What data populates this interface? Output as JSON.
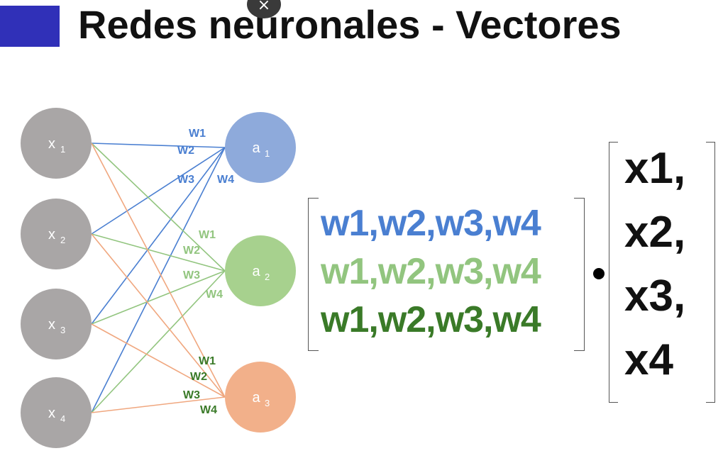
{
  "header": {
    "title": "Redes neuronales - Vectores",
    "close_symbol": "×",
    "accent_color": "#3030b8"
  },
  "colors": {
    "blue": "#4a7fd1",
    "light_green": "#92c57f",
    "dark_green": "#3a7a28",
    "orange": "#f0a77f",
    "input_node": "#a9a6a6",
    "a1_node": "#8eaadb",
    "a2_node": "#a7d18e",
    "a3_node": "#f2b08a"
  },
  "inputs": [
    {
      "label": "x",
      "sub": "1"
    },
    {
      "label": "x",
      "sub": "2"
    },
    {
      "label": "x",
      "sub": "3"
    },
    {
      "label": "x",
      "sub": "4"
    }
  ],
  "outputs": [
    {
      "label": "a",
      "sub": "1"
    },
    {
      "label": "a",
      "sub": "2"
    },
    {
      "label": "a",
      "sub": "3"
    }
  ],
  "weight_labels": {
    "a1": [
      "W1",
      "W2",
      "W3",
      "W4"
    ],
    "a2": [
      "W1",
      "W2",
      "W3",
      "W4"
    ],
    "a3": [
      "W1",
      "W2",
      "W3",
      "W4"
    ]
  },
  "matrix": {
    "rows": [
      "w1,w2,w3,w4",
      "w1,w2,w3,w4",
      "w1,w2,w3,w4"
    ]
  },
  "vector": {
    "rows": [
      "x1,",
      "x2,",
      "x3,",
      "x4"
    ]
  }
}
